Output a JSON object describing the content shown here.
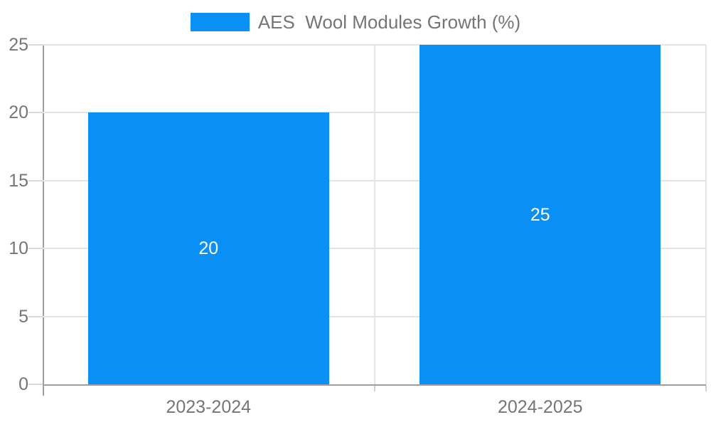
{
  "chart_data": {
    "type": "bar",
    "title": "",
    "legend": {
      "label": "AES  Wool Modules Growth (%)",
      "position": "top"
    },
    "categories": [
      "2023-2024",
      "2024-2025"
    ],
    "series": [
      {
        "name": "AES  Wool Modules Growth (%)",
        "values": [
          20,
          25
        ]
      }
    ],
    "value_labels": [
      "20",
      "25"
    ],
    "xlabel": "",
    "ylabel": "",
    "ylim": [
      0,
      25
    ],
    "yticks": [
      0,
      5,
      10,
      15,
      20,
      25
    ],
    "grid": true,
    "legend_visible": true,
    "colors": {
      "bar": "#0A90F5",
      "value_label": "#ffffff",
      "axis_label": "#757575",
      "axis_line": "#9e9e9e",
      "gridline": "#e3e3e3"
    }
  }
}
